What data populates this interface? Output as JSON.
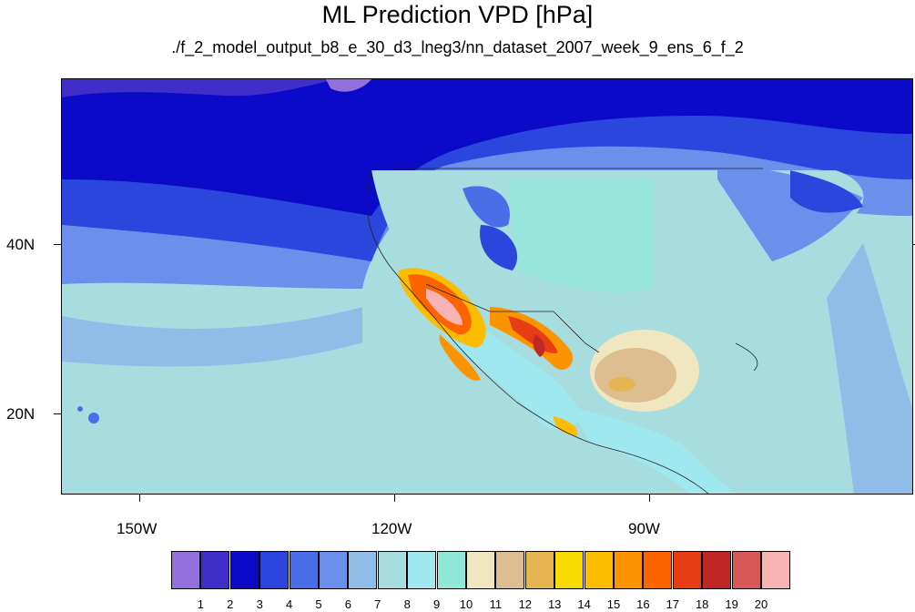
{
  "title": "ML Prediction VPD [hPa]",
  "subtitle": "./f_2_model_output_b8_e_30_d3_lneg3/nn_dataset_2007_week_9_ens_6_f_2",
  "axes": {
    "lat_labels": [
      "40N",
      "20N"
    ],
    "lon_labels": [
      "150W",
      "120W",
      "90W"
    ]
  },
  "colorbar": {
    "labels": [
      "1",
      "2",
      "3",
      "4",
      "5",
      "6",
      "7",
      "8",
      "9",
      "10",
      "11",
      "12",
      "13",
      "14",
      "15",
      "16",
      "17",
      "18",
      "19",
      "20"
    ],
    "colors": [
      "#9370db",
      "#3f2fc8",
      "#0a0ac8",
      "#2a46dc",
      "#4a6ee8",
      "#6a90ec",
      "#90bce8",
      "#a8dde0",
      "#a0e8f0",
      "#90e8d8",
      "#f0e6c0",
      "#dcbe90",
      "#e6b450",
      "#f8dc00",
      "#fcbc00",
      "#fc9400",
      "#fc6400",
      "#e83c14",
      "#c02828",
      "#d85858",
      "#f8b4b4"
    ]
  },
  "chart_data": {
    "type": "heatmap",
    "title": "ML Prediction VPD [hPa]",
    "subtitle": "./f_2_model_output_b8_e_30_d3_lneg3/nn_dataset_2007_week_9_ens_6_f_2",
    "xlabel": "",
    "ylabel": "",
    "x_ticks": [
      "150W",
      "120W",
      "90W"
    ],
    "y_ticks": [
      "40N",
      "20N"
    ],
    "xlim": [
      -160,
      -60
    ],
    "ylim": [
      10,
      59
    ],
    "colorbar_levels": [
      1,
      2,
      3,
      4,
      5,
      6,
      7,
      8,
      9,
      10,
      11,
      12,
      13,
      14,
      15,
      16,
      17,
      18,
      19,
      20
    ]
  }
}
